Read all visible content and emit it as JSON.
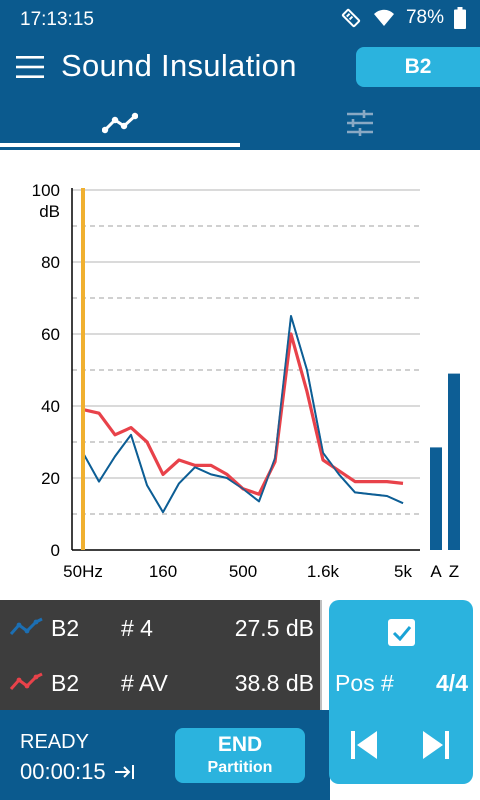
{
  "status_bar": {
    "time": "17:13:15",
    "battery": "78%",
    "icons": [
      "usb-debug-icon",
      "wifi-icon",
      "battery-icon"
    ]
  },
  "app_bar": {
    "title": "Sound Insulation",
    "profile_button": "B2",
    "menu_icon": "hamburger-menu-icon"
  },
  "tabs": [
    {
      "name": "graph",
      "icon": "line-chart-icon",
      "active": true
    },
    {
      "name": "settings",
      "icon": "sliders-icon",
      "active": false
    }
  ],
  "chart_data": {
    "type": "line",
    "ylabel_value": "100",
    "ylabel_unit": "dB",
    "y_ticks": [
      "0",
      "20",
      "40",
      "60",
      "80"
    ],
    "ylim": [
      0,
      100
    ],
    "x_tick_labels": [
      "50Hz",
      "160",
      "500",
      "1.6k",
      "5k"
    ],
    "x_tick_positions": [
      0,
      5,
      10,
      15,
      20
    ],
    "cursor_index": 0,
    "series": [
      {
        "name": "B2 # 4",
        "color": "#0d5e95",
        "values": [
          27,
          19,
          26,
          32,
          18,
          10.5,
          18.5,
          23,
          21,
          20,
          17,
          13.5,
          25.5,
          65,
          50,
          27,
          21,
          16,
          15.5,
          15,
          13
        ]
      },
      {
        "name": "B2 # AV",
        "color": "#e8424a",
        "values": [
          39,
          38,
          32,
          34,
          30,
          21,
          25,
          23.5,
          23.5,
          21,
          17,
          15.5,
          24.5,
          60,
          44,
          25,
          22,
          19,
          19,
          19,
          18.5
        ]
      }
    ],
    "overall_bars": [
      {
        "label": "A",
        "value": 28.5,
        "color": "#0d5e95"
      },
      {
        "label": "Z",
        "value": 49,
        "color": "#0d5e95"
      }
    ],
    "accent": "#f0b030",
    "grid": true
  },
  "legend": [
    {
      "name": "B2",
      "index": "# 4",
      "value": "27.5 dB",
      "color": "#1c6fb3"
    },
    {
      "name": "B2",
      "index": "# AV",
      "value": "38.8 dB",
      "color": "#e8424a"
    }
  ],
  "status": {
    "state": "READY",
    "elapsed": "00:00:15"
  },
  "end_button": {
    "line1": "END",
    "line2": "Partition"
  },
  "position": {
    "label": "Pos #",
    "value": "4/4",
    "checked": true
  }
}
